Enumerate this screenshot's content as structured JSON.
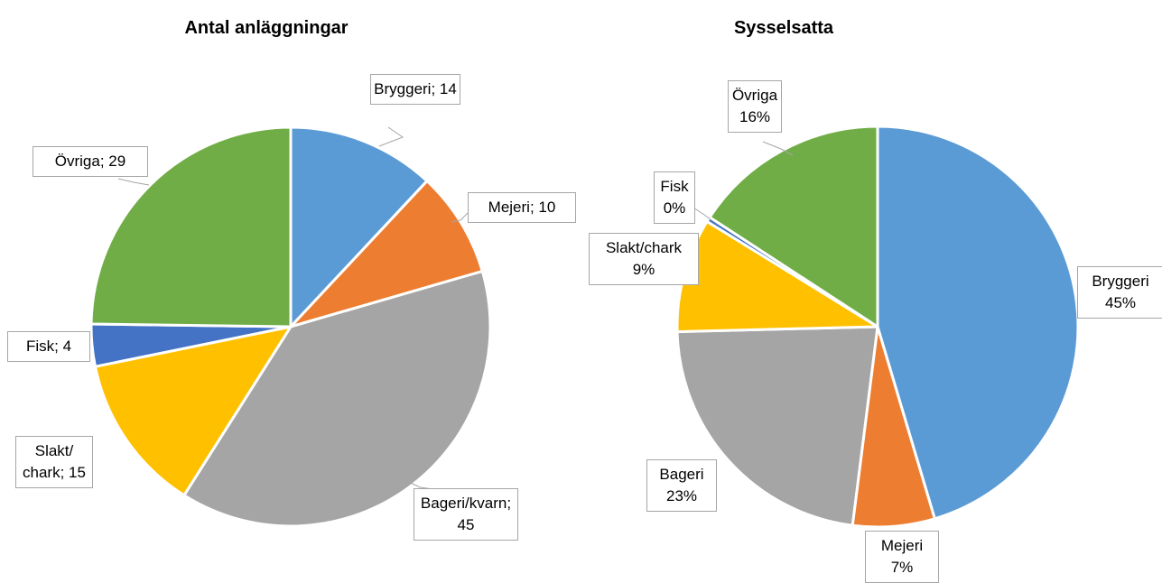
{
  "chart_data": [
    {
      "type": "pie",
      "title": "Antal anläggningar",
      "categories": [
        "Bryggeri;",
        "Mejeri;",
        "Bageri/kvarn;",
        "Slakt/ chark;",
        "Fisk;",
        "Övriga;"
      ],
      "values": [
        14,
        10,
        45,
        15,
        4,
        29
      ],
      "colors": [
        "#5b9bd5",
        "#ed7d31",
        "#a5a5a5",
        "#ffc000",
        "#4472c4",
        "#70ad47"
      ]
    },
    {
      "type": "pie",
      "title": "Sysselsatta",
      "categories": [
        "Bryggeri",
        "Mejeri",
        "Bageri",
        "Slakt/chark",
        "Fisk",
        "Övriga"
      ],
      "values": [
        45.4,
        6.6,
        22.6,
        9.2,
        0.4,
        15.8
      ],
      "value_labels": [
        "45%",
        "7%",
        "23%",
        "9%",
        "0%",
        "16%"
      ],
      "colors": [
        "#5b9bd5",
        "#ed7d31",
        "#a5a5a5",
        "#ffc000",
        "#4472c4",
        "#70ad47"
      ]
    }
  ]
}
